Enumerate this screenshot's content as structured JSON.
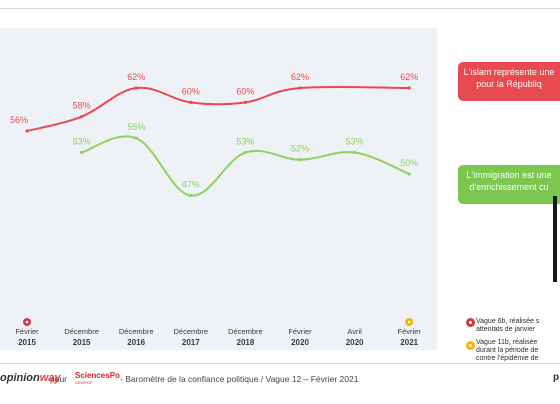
{
  "chart_data": {
    "type": "line",
    "categories": [
      {
        "month": "Février",
        "year": "2015"
      },
      {
        "month": "Décembre",
        "year": "2015"
      },
      {
        "month": "Décembre",
        "year": "2016"
      },
      {
        "month": "Décembre",
        "year": "2017"
      },
      {
        "month": "Décembre",
        "year": "2018"
      },
      {
        "month": "Février",
        "year": "2020"
      },
      {
        "month": "Avril",
        "year": "2020"
      },
      {
        "month": "Février",
        "year": "2021"
      }
    ],
    "series": [
      {
        "key": "islam",
        "color": "#e84a50",
        "values": [
          56,
          58,
          62,
          60,
          60,
          62,
          null,
          62
        ],
        "labels": [
          "56%",
          "58%",
          "62%",
          "60%",
          "60%",
          "62%",
          "",
          "62%"
        ]
      },
      {
        "key": "immigration",
        "color": "#8fd15c",
        "values": [
          null,
          53,
          55,
          47,
          53,
          52,
          53,
          50
        ],
        "labels": [
          "",
          "53%",
          "55%",
          "47%",
          "53%",
          "52%",
          "53%",
          "50%"
        ]
      }
    ],
    "event_markers": [
      {
        "category_index": 0,
        "type": "attentats",
        "color": "#d13a3f"
      },
      {
        "category_index": 7,
        "type": "epidemie",
        "color": "#f4b400"
      }
    ]
  },
  "annotations": {
    "islam": {
      "line1": "L'islam représente une",
      "line2": "pour la Républiq"
    },
    "immigration": {
      "line1": "L'immigration est une",
      "line2": "d'enrichissement cu"
    }
  },
  "notes": [
    {
      "line1": "Vague 6b, réalisée s",
      "line2": "attentats de janvier"
    },
    {
      "line1": "Vague 11b, réalisée",
      "line2": "durant la période de",
      "line3": "contre l'épidémie de"
    }
  ],
  "footer": {
    "logo_opinion": "opinion",
    "logo_way": "way",
    "pour": "pour",
    "logo_sciencespo": "SciencesPo",
    "logo_sciencespo_sub": "CEVIPOF",
    "source": "-  Baromètre de la confiance politique / Vague 12 – Février 2021",
    "page": "p"
  }
}
